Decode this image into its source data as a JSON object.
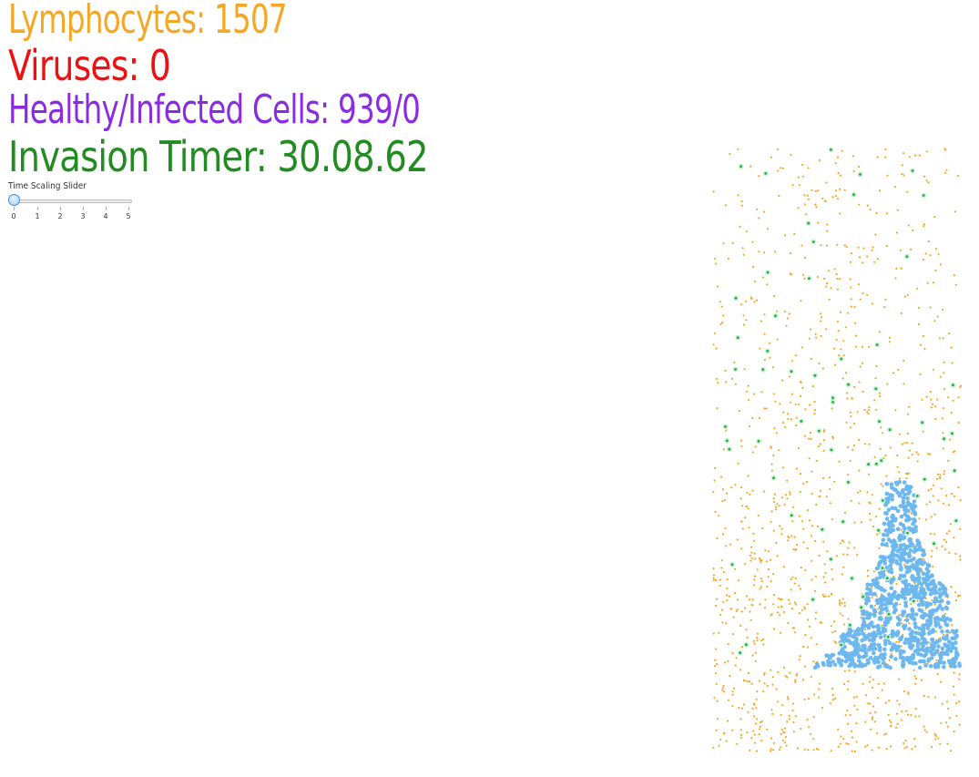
{
  "stats": {
    "lymphocytes": "Lymphocytes: 1507",
    "viruses": "Viruses: 0",
    "cells": "Healthy/Infected Cells: 939/0",
    "timer": "Invasion Timer: 30.08.62"
  },
  "colors": {
    "lymphocytes": "#f5a623",
    "viruses": "#ee1111",
    "cells": "#8a2be2",
    "timer": "#228b22",
    "healthy_cell": "#6cb8ef",
    "cell_halo": "#c8f2d2",
    "cell_core": "#2aa84a"
  },
  "slider": {
    "label": "Time Scaling Slider",
    "value": 0,
    "min": 0,
    "max": 5,
    "ticks": [
      "0",
      "1",
      "2",
      "3",
      "4",
      "5"
    ]
  }
}
